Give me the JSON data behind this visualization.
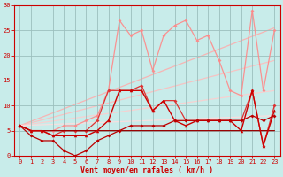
{
  "bg_color": "#c8ecea",
  "grid_color": "#9bbfbd",
  "xlabel": "Vent moyen/en rafales ( km/h )",
  "xlim": [
    -0.5,
    23.5
  ],
  "ylim": [
    0,
    30
  ],
  "yticks": [
    0,
    5,
    10,
    15,
    20,
    25,
    30
  ],
  "xticks": [
    0,
    1,
    2,
    3,
    4,
    5,
    6,
    7,
    8,
    9,
    10,
    11,
    12,
    13,
    14,
    15,
    16,
    17,
    18,
    19,
    20,
    21,
    22,
    23
  ],
  "series": [
    {
      "x": [
        0,
        23
      ],
      "y": [
        6.0,
        25.5
      ],
      "color": "#ffaaaa",
      "lw": 0.9,
      "marker": null,
      "ms": 0,
      "alpha": 0.85,
      "zorder": 1
    },
    {
      "x": [
        0,
        23
      ],
      "y": [
        6.0,
        19.0
      ],
      "color": "#ffbbbb",
      "lw": 0.9,
      "marker": null,
      "ms": 0,
      "alpha": 0.85,
      "zorder": 1
    },
    {
      "x": [
        0,
        23
      ],
      "y": [
        6.0,
        13.0
      ],
      "color": "#ffcccc",
      "lw": 0.9,
      "marker": null,
      "ms": 0,
      "alpha": 0.85,
      "zorder": 1
    },
    {
      "x": [
        0,
        23
      ],
      "y": [
        6.0,
        8.0
      ],
      "color": "#ffdddd",
      "lw": 0.9,
      "marker": null,
      "ms": 0,
      "alpha": 0.85,
      "zorder": 1
    },
    {
      "x": [
        0,
        1,
        2,
        3,
        4,
        5,
        6,
        7,
        8,
        9,
        10,
        11,
        12,
        13,
        14,
        15,
        16,
        17,
        18,
        19,
        20,
        21,
        22,
        23
      ],
      "y": [
        6,
        5,
        5,
        5,
        6,
        6,
        7,
        8,
        13,
        27,
        24,
        25,
        17,
        24,
        26,
        27,
        23,
        24,
        19,
        13,
        12,
        29,
        13,
        25
      ],
      "color": "#ff8888",
      "lw": 0.9,
      "marker": "D",
      "ms": 2.0,
      "alpha": 0.9,
      "zorder": 3
    },
    {
      "x": [
        0,
        1,
        2,
        3,
        4,
        5,
        6,
        7,
        8,
        9,
        10,
        11,
        12,
        13,
        14,
        15,
        16,
        17,
        18,
        19,
        20,
        21,
        22,
        23
      ],
      "y": [
        6,
        5,
        5,
        4,
        5,
        5,
        5,
        7,
        13,
        13,
        13,
        14,
        9,
        11,
        11,
        7,
        7,
        7,
        7,
        7,
        7,
        13,
        2,
        10
      ],
      "color": "#dd3333",
      "lw": 0.9,
      "marker": "D",
      "ms": 2.0,
      "alpha": 1.0,
      "zorder": 4
    },
    {
      "x": [
        0,
        1,
        2,
        3,
        4,
        5,
        6,
        7,
        8,
        9,
        10,
        11,
        12,
        13,
        14,
        15,
        16,
        17,
        18,
        19,
        20,
        21,
        22,
        23
      ],
      "y": [
        6,
        5,
        5,
        4,
        4,
        4,
        4,
        5,
        7,
        13,
        13,
        13,
        9,
        11,
        7,
        6,
        7,
        7,
        7,
        7,
        5,
        13,
        2,
        9
      ],
      "color": "#cc0000",
      "lw": 1.0,
      "marker": "^",
      "ms": 2.5,
      "alpha": 1.0,
      "zorder": 5
    },
    {
      "x": [
        0,
        1,
        2,
        3,
        4,
        5,
        6,
        7,
        8,
        9,
        10,
        11,
        12,
        13,
        14,
        15,
        16,
        17,
        18,
        19,
        20,
        21,
        22,
        23
      ],
      "y": [
        6,
        4,
        3,
        3,
        1,
        0,
        1,
        3,
        4,
        5,
        6,
        6,
        6,
        6,
        7,
        7,
        7,
        7,
        7,
        7,
        7,
        8,
        7,
        8
      ],
      "color": "#bb0000",
      "lw": 0.9,
      "marker": "D",
      "ms": 2.0,
      "alpha": 1.0,
      "zorder": 5
    },
    {
      "x": [
        0,
        1,
        2,
        3,
        4,
        5,
        6,
        7,
        8,
        9,
        10,
        11,
        12,
        13,
        14,
        15,
        16,
        17,
        18,
        19,
        20,
        21,
        22,
        23
      ],
      "y": [
        6,
        5,
        5,
        5,
        5,
        5,
        5,
        5,
        5,
        5,
        5,
        5,
        5,
        5,
        5,
        5,
        5,
        5,
        5,
        5,
        5,
        5,
        5,
        5
      ],
      "color": "#990000",
      "lw": 0.9,
      "marker": null,
      "ms": 0,
      "alpha": 1.0,
      "zorder": 4
    }
  ]
}
